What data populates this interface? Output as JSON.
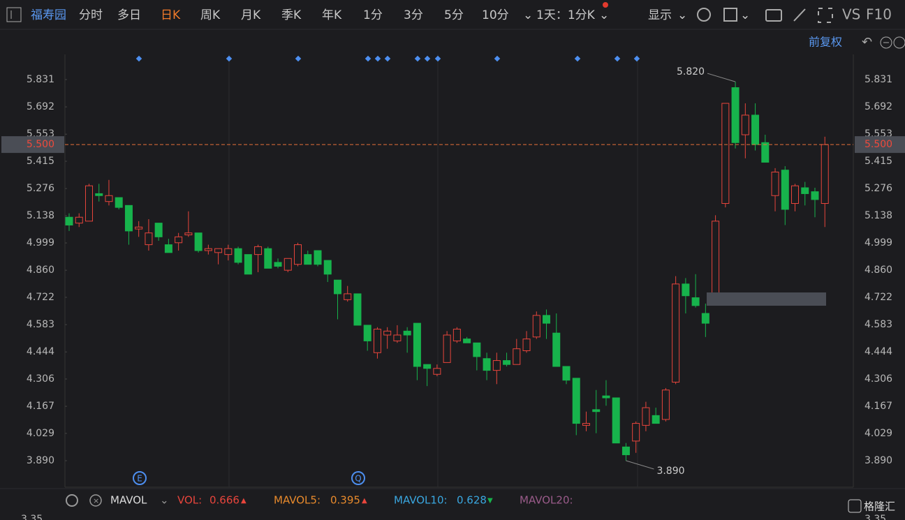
{
  "toolbar": {
    "stock": "福寿园",
    "tabs": [
      "分时",
      "多日",
      "日K",
      "周K",
      "月K",
      "季K",
      "年K",
      "1分",
      "3分",
      "5分",
      "10分"
    ],
    "period": "1天：1分K",
    "display": "显示",
    "vs": "VS",
    "f10": "F10",
    "adjust": "前复权"
  },
  "indicator_bar": {
    "name": "MAVOL",
    "vol_label": "VOL:",
    "vol": "0.666",
    "mavol5_label": "MAVOL5:",
    "mavol5": "0.395",
    "mavol10_label": "MAVOL10:",
    "mavol10": "0.628",
    "mavol20_label": "MAVOL20:",
    "vol_axis": "3.35"
  },
  "brand": "格隆汇",
  "event_markers": [
    "E",
    "Q"
  ],
  "chart_data": {
    "type": "candlestick",
    "categories": [
      null,
      null,
      null,
      null,
      null,
      null,
      null,
      null,
      null,
      null,
      null,
      null,
      null,
      null,
      null,
      null,
      null,
      null,
      null,
      null,
      null,
      null,
      null,
      null,
      null,
      null,
      null,
      null,
      null,
      null,
      null,
      null,
      null,
      null,
      null,
      null,
      null,
      null,
      null,
      null,
      null,
      null,
      null,
      null,
      null,
      null,
      null,
      null,
      null,
      null,
      null,
      null,
      null,
      null,
      null,
      null,
      null,
      null,
      null,
      null,
      null,
      null,
      null,
      null,
      null,
      null,
      null,
      null,
      null,
      null,
      null,
      null,
      null,
      null,
      null,
      null,
      null
    ],
    "open": [
      5.13,
      5.1,
      5.11,
      5.25,
      5.21,
      5.23,
      5.19,
      5.07,
      4.99,
      5.1,
      4.99,
      5.0,
      5.04,
      5.05,
      4.96,
      4.95,
      4.94,
      4.97,
      4.94,
      4.94,
      4.97,
      4.9,
      4.86,
      4.89,
      4.94,
      4.96,
      4.91,
      4.81,
      4.71,
      4.74,
      4.58,
      4.44,
      4.53,
      4.5,
      4.55,
      4.59,
      4.38,
      4.33,
      4.39,
      4.5,
      4.51,
      4.49,
      4.41,
      4.35,
      4.4,
      4.38,
      4.45,
      4.52,
      4.63,
      4.54,
      4.37,
      4.31,
      4.07,
      4.15,
      4.22,
      4.21,
      3.96,
      3.99,
      4.07,
      4.12,
      4.1,
      4.29,
      4.79,
      4.72,
      4.64,
      4.74,
      5.2,
      5.79,
      5.55,
      5.65,
      5.51,
      5.24,
      5.37,
      5.2,
      5.28,
      5.26,
      5.2
    ],
    "high": [
      5.15,
      5.15,
      5.3,
      5.3,
      5.32,
      5.23,
      5.19,
      5.11,
      5.12,
      5.1,
      5.02,
      5.05,
      5.16,
      5.05,
      4.99,
      4.97,
      4.99,
      4.98,
      4.94,
      4.99,
      4.98,
      4.92,
      4.92,
      5.0,
      4.96,
      4.96,
      4.91,
      4.81,
      4.78,
      4.74,
      4.58,
      4.57,
      4.57,
      4.58,
      4.57,
      4.59,
      4.38,
      4.38,
      4.55,
      4.57,
      4.52,
      4.49,
      4.44,
      4.44,
      4.44,
      4.51,
      4.55,
      4.65,
      4.66,
      4.64,
      4.37,
      4.31,
      4.14,
      4.25,
      4.3,
      4.21,
      3.98,
      4.09,
      4.19,
      4.16,
      4.26,
      4.83,
      4.82,
      4.84,
      4.69,
      5.14,
      5.71,
      5.82,
      5.71,
      5.71,
      5.55,
      5.38,
      5.39,
      5.3,
      5.31,
      5.28,
      5.54
    ],
    "low": [
      5.06,
      5.08,
      5.11,
      5.21,
      5.19,
      5.17,
      4.99,
      5.03,
      4.96,
      5.01,
      4.95,
      4.96,
      5.03,
      4.95,
      4.94,
      4.89,
      4.91,
      4.89,
      4.84,
      4.85,
      4.87,
      4.87,
      4.85,
      4.88,
      4.89,
      4.88,
      4.8,
      4.61,
      4.7,
      4.58,
      4.45,
      4.41,
      4.46,
      4.49,
      4.44,
      4.3,
      4.27,
      4.32,
      4.39,
      4.49,
      4.49,
      4.35,
      4.3,
      4.28,
      4.37,
      4.38,
      4.44,
      4.51,
      4.51,
      4.37,
      4.28,
      4.02,
      4.04,
      4.03,
      4.17,
      3.98,
      3.89,
      3.93,
      4.04,
      4.08,
      4.09,
      4.28,
      4.64,
      4.67,
      4.52,
      4.72,
      5.18,
      5.48,
      5.43,
      5.47,
      5.41,
      5.16,
      5.09,
      5.16,
      5.19,
      5.13,
      5.08
    ],
    "close": [
      5.09,
      5.13,
      5.29,
      5.24,
      5.24,
      5.18,
      5.06,
      5.08,
      5.05,
      5.03,
      4.95,
      5.03,
      5.05,
      4.96,
      4.97,
      4.97,
      4.97,
      4.9,
      4.84,
      4.98,
      4.87,
      4.88,
      4.92,
      4.99,
      4.89,
      4.89,
      4.84,
      4.74,
      4.74,
      4.58,
      4.5,
      4.56,
      4.55,
      4.53,
      4.53,
      4.37,
      4.36,
      4.36,
      4.53,
      4.56,
      4.49,
      4.42,
      4.35,
      4.4,
      4.38,
      4.46,
      4.51,
      4.63,
      4.59,
      4.37,
      4.3,
      4.08,
      4.08,
      4.14,
      4.21,
      3.98,
      3.92,
      4.08,
      4.16,
      4.08,
      4.25,
      4.79,
      4.73,
      4.68,
      4.59,
      5.11,
      5.71,
      5.51,
      5.65,
      5.5,
      5.41,
      5.36,
      5.17,
      5.29,
      5.25,
      5.22,
      5.5
    ],
    "up_color": "#e8453c",
    "down_color": "#17b34c",
    "ylim": [
      3.755,
      5.959
    ],
    "yticks": [
      5.831,
      5.692,
      5.553,
      5.415,
      5.276,
      5.138,
      4.999,
      {
        "value": 4.86,
        "label": "4.860"
      },
      4.722,
      4.583,
      4.444,
      4.306,
      4.167,
      4.029,
      {
        "value": 3.89,
        "label": "3.890"
      }
    ],
    "last_price": {
      "value": 5.5,
      "label": "5.500"
    },
    "max_annotation": {
      "value": 5.82,
      "label": "5.820"
    },
    "min_annotation": {
      "value": 3.89,
      "label": "3.890"
    }
  }
}
